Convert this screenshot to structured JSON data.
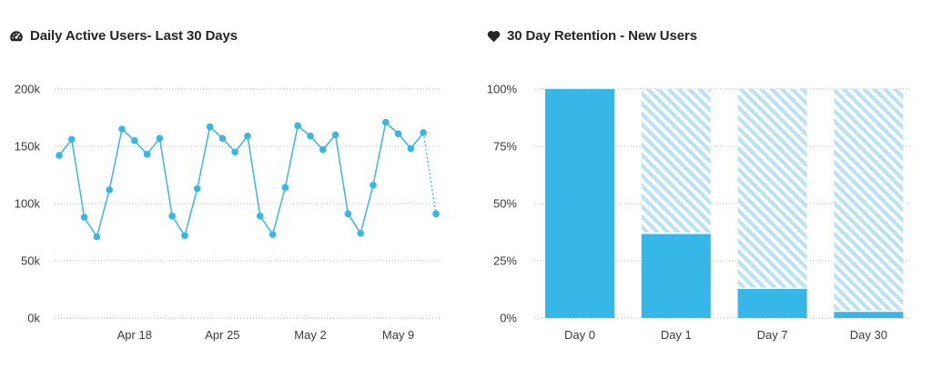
{
  "colors": {
    "accent": "#37b6e8",
    "accent_light": "#b9e2f5",
    "grid": "#b5b5b5",
    "text": "#3a3a3a"
  },
  "chart_data": [
    {
      "type": "line",
      "title": "Daily Active Users- Last 30 Days",
      "title_icon": "dashboard-gauge-icon",
      "xlabel": "",
      "ylabel": "",
      "ylim": [
        0,
        200000
      ],
      "y_ticks": [
        0,
        50000,
        100000,
        150000,
        200000
      ],
      "y_tick_labels": [
        "0k",
        "50k",
        "100k",
        "150k",
        "200k"
      ],
      "x": [
        "Apr 12",
        "Apr 13",
        "Apr 14",
        "Apr 15",
        "Apr 16",
        "Apr 17",
        "Apr 18",
        "Apr 19",
        "Apr 20",
        "Apr 21",
        "Apr 22",
        "Apr 23",
        "Apr 24",
        "Apr 25",
        "Apr 26",
        "Apr 27",
        "Apr 28",
        "Apr 29",
        "Apr 30",
        "May 1",
        "May 2",
        "May 3",
        "May 4",
        "May 5",
        "May 6",
        "May 7",
        "May 8",
        "May 9",
        "May 10",
        "May 11",
        "May 12"
      ],
      "x_tick_labels": [
        {
          "label": "Apr 18",
          "at": "Apr 18"
        },
        {
          "label": "Apr 25",
          "at": "Apr 25"
        },
        {
          "label": "May 2",
          "at": "May 2"
        },
        {
          "label": "May 9",
          "at": "May 9"
        }
      ],
      "series": [
        {
          "values": [
            142000,
            156000,
            88000,
            71000,
            112000,
            165000,
            155000,
            143000,
            157000,
            89000,
            72000,
            113000,
            167000,
            157000,
            145000,
            159000,
            89000,
            73000,
            114000,
            168000,
            159000,
            147000,
            160000,
            91000,
            74000,
            116000,
            171000,
            161000,
            148000,
            162000,
            91000
          ],
          "partial_last_point": true
        }
      ],
      "grid": true,
      "grid_style": "dotted"
    },
    {
      "type": "bar",
      "title": "30 Day Retention - New Users",
      "title_icon": "heart-icon",
      "xlabel": "",
      "ylabel": "",
      "ylim": [
        0,
        100
      ],
      "y_ticks": [
        0,
        25,
        50,
        75,
        100
      ],
      "y_tick_labels": [
        "0%",
        "25%",
        "50%",
        "75%",
        "100%"
      ],
      "categories": [
        "Day 0",
        "Day 1",
        "Day 7",
        "Day 30"
      ],
      "values": [
        100,
        37,
        13,
        3
      ],
      "background_bar_value": 100,
      "grid": true,
      "grid_style": "dotted"
    }
  ]
}
